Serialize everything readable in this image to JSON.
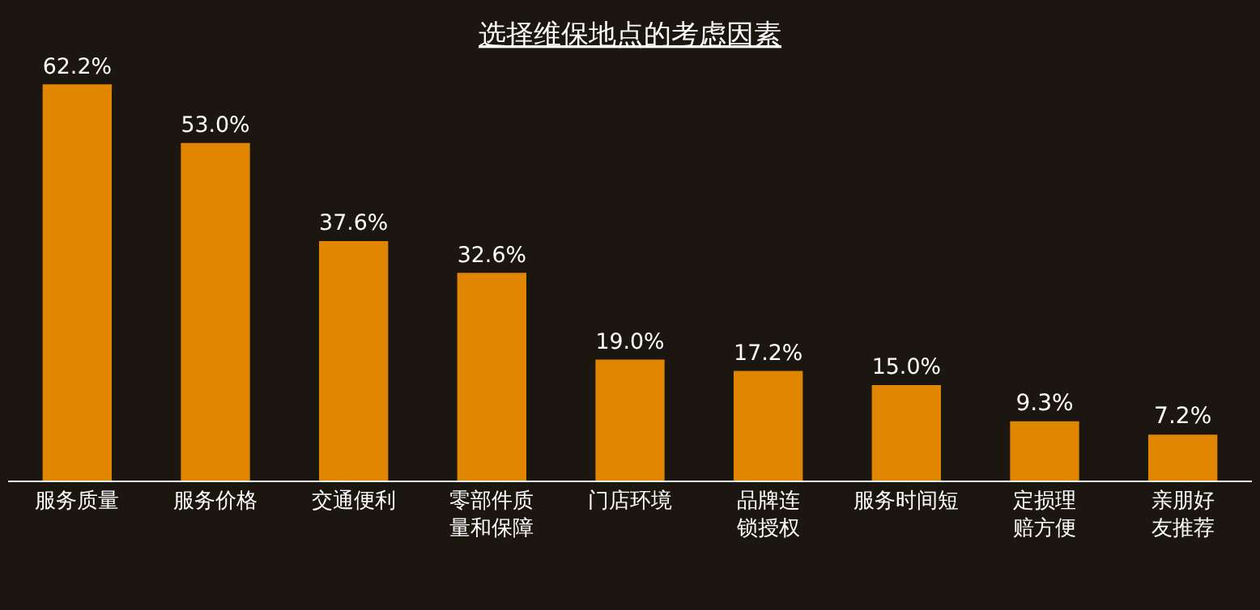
{
  "chart_data": {
    "type": "bar",
    "title": "选择维保地点的考虑因素",
    "categories": [
      "服务质量",
      "服务价格",
      "交通便利",
      "零部件质量和保障",
      "门店环境",
      "品牌连锁授权",
      "服务时间短",
      "定损理赔方便",
      "亲朋好友推荐"
    ],
    "values": [
      62.2,
      53.0,
      37.6,
      32.6,
      19.0,
      17.2,
      15.0,
      9.3,
      7.2
    ],
    "value_labels": [
      "62.2%",
      "53.0%",
      "37.6%",
      "32.6%",
      "19.0%",
      "17.2%",
      "15.0%",
      "9.3%",
      "7.2%"
    ],
    "color": "#e08600",
    "legend": false,
    "grid": false
  }
}
